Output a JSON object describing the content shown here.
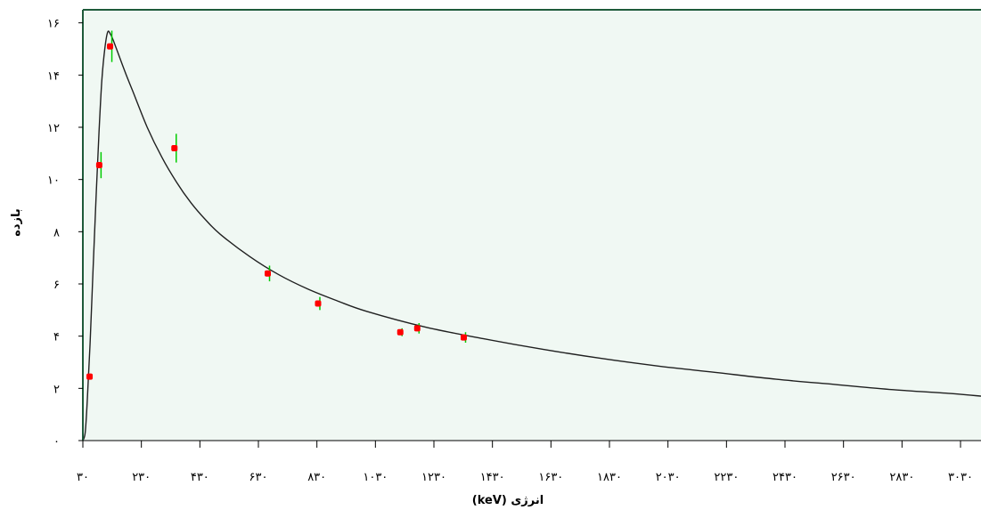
{
  "colors": {
    "plot_background": "#f0f8f3",
    "frame": "#1e5a3a",
    "curve": "#202020",
    "points": "#ff0000",
    "error_bars": "#00cc00"
  },
  "chart_data": {
    "type": "scatter",
    "title": "",
    "xlabel": "انرژی (keV)",
    "ylabel": "بازده",
    "xlim": [
      30,
      3100
    ],
    "ylim": [
      0,
      16.5
    ],
    "x_ticks": [
      30,
      230,
      430,
      630,
      830,
      1030,
      1230,
      1430,
      1630,
      1830,
      2030,
      2230,
      2430,
      2630,
      2830,
      3030
    ],
    "x_tick_labels": [
      "۳۰",
      "۲۳۰",
      "۴۳۰",
      "۶۳۰",
      "۸۳۰",
      "۱۰۳۰",
      "۱۲۳۰",
      "۱۴۳۰",
      "۱۶۳۰",
      "۱۸۳۰",
      "۲۰۳۰",
      "۲۲۳۰",
      "۲۴۳۰",
      "۲۶۳۰",
      "۲۸۳۰",
      "۳۰۳۰"
    ],
    "y_ticks": [
      0,
      2,
      4,
      6,
      8,
      10,
      12,
      14,
      16
    ],
    "y_tick_labels": [
      "۰",
      "۲",
      "۴",
      "۶",
      "۸",
      "۱۰",
      "۱۲",
      "۱۴",
      "۱۶"
    ],
    "grid": false,
    "legend": "none",
    "series": [
      {
        "type": "scatter",
        "x": [
          53,
          86,
          123,
          343,
          662,
          834,
          1115,
          1173,
          1332
        ],
        "y": [
          2.45,
          10.55,
          15.1,
          11.2,
          6.4,
          5.25,
          4.15,
          4.3,
          3.95
        ],
        "error": [
          0.1,
          0.5,
          0.6,
          0.55,
          0.3,
          0.25,
          0.15,
          0.2,
          0.2
        ]
      },
      {
        "type": "line",
        "x": [
          30,
          38,
          45,
          55,
          65,
          75,
          85,
          95,
          105,
          115,
          125,
          135,
          150,
          175,
          200,
          250,
          300,
          350,
          400,
          450,
          500,
          600,
          700,
          800,
          900,
          1000,
          1200,
          1400,
          1600,
          1800,
          2000,
          2200,
          2400,
          2600,
          2800,
          3000,
          3100
        ],
        "y": [
          0.0,
          0.3,
          1.5,
          3.8,
          6.6,
          9.3,
          11.8,
          13.8,
          15.0,
          15.65,
          15.55,
          15.3,
          14.85,
          14.1,
          13.4,
          12.0,
          10.85,
          9.9,
          9.1,
          8.45,
          7.9,
          7.05,
          6.35,
          5.8,
          5.35,
          4.95,
          4.35,
          3.9,
          3.5,
          3.15,
          2.85,
          2.6,
          2.35,
          2.15,
          1.95,
          1.8,
          1.7
        ]
      }
    ]
  }
}
